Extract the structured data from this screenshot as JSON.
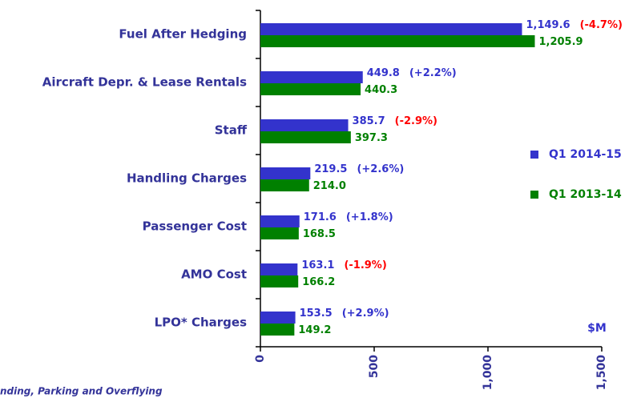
{
  "chart_data": {
    "type": "bar",
    "orientation": "horizontal",
    "categories": [
      "Fuel After Hedging",
      "Aircraft Depr. & Lease Rentals",
      "Staff",
      "Handling Charges",
      "Passenger Cost",
      "AMO Cost",
      "LPO* Charges"
    ],
    "series": [
      {
        "name": "Q1 2014-15",
        "color": "#3333cc",
        "values": [
          1149.6,
          449.8,
          385.7,
          219.5,
          171.6,
          163.1,
          153.5
        ],
        "value_labels": [
          "1,149.6",
          "449.8",
          "385.7",
          "219.5",
          "171.6",
          "163.1",
          "153.5"
        ]
      },
      {
        "name": "Q1 2013-14",
        "color": "#008000",
        "values": [
          1205.9,
          440.3,
          397.3,
          214.0,
          168.5,
          166.2,
          149.2
        ],
        "value_labels": [
          "1,205.9",
          "440.3",
          "397.3",
          "214.0",
          "168.5",
          "166.2",
          "149.2"
        ]
      }
    ],
    "annotations": [
      {
        "text": "(-4.7%)",
        "color": "#ff0000"
      },
      {
        "text": "(+2.2%)",
        "color": "#3333cc"
      },
      {
        "text": "(-2.9%)",
        "color": "#ff0000"
      },
      {
        "text": "(+2.6%)",
        "color": "#3333cc"
      },
      {
        "text": "(+1.8%)",
        "color": "#3333cc"
      },
      {
        "text": "(-1.9%)",
        "color": "#ff0000"
      },
      {
        "text": "(+2.9%)",
        "color": "#3333cc"
      }
    ],
    "xlim": [
      0,
      1500
    ],
    "xticks": [
      0,
      500,
      {
        "value": 1000,
        "label": "1,000"
      },
      {
        "value": 1500,
        "label": "1,500"
      }
    ],
    "unit_label": "$M",
    "footnote": "nding, Parking and Overflying",
    "legend": "right"
  }
}
